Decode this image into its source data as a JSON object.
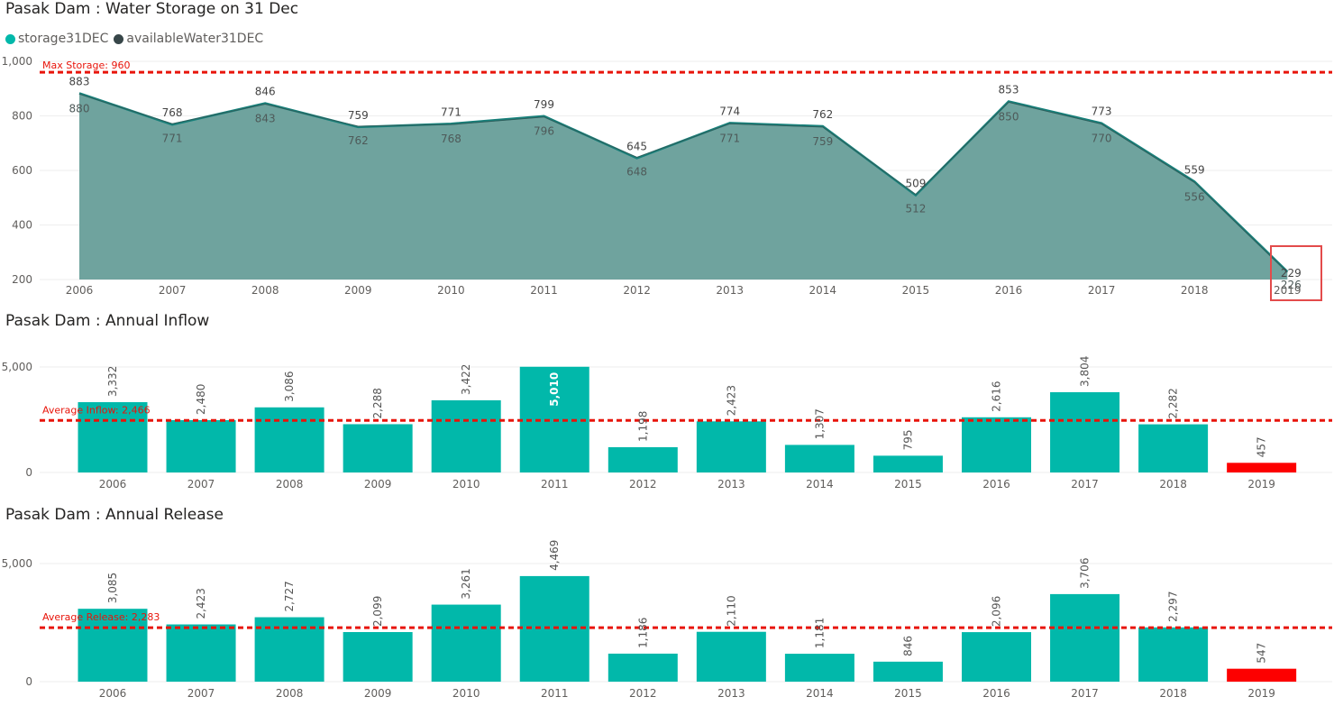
{
  "colors": {
    "storage": "#01B8AA",
    "available": "#374649",
    "area_fill": "#6FA39E",
    "line": "#17807A",
    "bar": "#01B8AA",
    "highlight_bar": "#FD0000",
    "reference_line": "#E8140A",
    "highlight_box": "#E34B4B",
    "grid": "#eeeeee",
    "axis_text": "#605e5c"
  },
  "charts": {
    "storage": {
      "title": "Pasak Dam : Water Storage on 31 Dec",
      "legend": [
        {
          "label": "storage31DEC",
          "color": "#01B8AA"
        },
        {
          "label": "availableWater31DEC",
          "color": "#374649"
        }
      ],
      "reference_label": "Max Storage: 960"
    },
    "inflow": {
      "title": "Pasak Dam : Annual Inflow",
      "reference_label": "Average Inflow: 2,466"
    },
    "release": {
      "title": "Pasak Dam : Annual Release",
      "reference_label": "Average Release: 2,283"
    }
  },
  "chart_data": [
    {
      "type": "area",
      "title": "Pasak Dam : Water Storage on 31 Dec",
      "x": [
        "2006",
        "2007",
        "2008",
        "2009",
        "2010",
        "2011",
        "2012",
        "2013",
        "2014",
        "2015",
        "2016",
        "2017",
        "2018",
        "2019"
      ],
      "series": [
        {
          "name": "storage31DEC",
          "values": [
            883,
            768,
            846,
            759,
            771,
            799,
            645,
            774,
            762,
            509,
            853,
            773,
            559,
            229
          ]
        },
        {
          "name": "availableWater31DEC",
          "values": [
            880,
            771,
            843,
            762,
            768,
            796,
            648,
            771,
            759,
            512,
            850,
            770,
            556,
            226
          ]
        }
      ],
      "reference_line": {
        "label": "Max Storage: 960",
        "value": 960
      },
      "y_ticks": [
        "200",
        "400",
        "600",
        "800",
        "1,000"
      ],
      "ylim": [
        200,
        1000
      ],
      "grid": true,
      "legend": "top-left",
      "highlight": "2019"
    },
    {
      "type": "bar",
      "title": "Pasak Dam : Annual Inflow",
      "categories": [
        "2006",
        "2007",
        "2008",
        "2009",
        "2010",
        "2011",
        "2012",
        "2013",
        "2014",
        "2015",
        "2016",
        "2017",
        "2018",
        "2019"
      ],
      "values": [
        3332,
        2480,
        3086,
        2288,
        3422,
        5010,
        1198,
        2423,
        1307,
        795,
        2616,
        3804,
        2282,
        457
      ],
      "labels": [
        "3,332",
        "2,480",
        "3,086",
        "2,288",
        "3,422",
        "5,010",
        "1,198",
        "2,423",
        "1,307",
        "795",
        "2,616",
        "3,804",
        "2,282",
        "457"
      ],
      "reference_line": {
        "label": "Average Inflow: 2,466",
        "value": 2466
      },
      "y_ticks": [
        "0",
        "5,000"
      ],
      "ylim": [
        0,
        5000
      ],
      "grid": true,
      "highlight": "2019"
    },
    {
      "type": "bar",
      "title": "Pasak Dam : Annual Release",
      "categories": [
        "2006",
        "2007",
        "2008",
        "2009",
        "2010",
        "2011",
        "2012",
        "2013",
        "2014",
        "2015",
        "2016",
        "2017",
        "2018",
        "2019"
      ],
      "values": [
        3085,
        2423,
        2727,
        2099,
        3261,
        4469,
        1186,
        2110,
        1181,
        846,
        2096,
        3706,
        2297,
        547
      ],
      "labels": [
        "3,085",
        "2,423",
        "2,727",
        "2,099",
        "3,261",
        "4,469",
        "1,186",
        "2,110",
        "1,181",
        "846",
        "2,096",
        "3,706",
        "2,297",
        "547"
      ],
      "reference_line": {
        "label": "Average Release: 2,283",
        "value": 2283
      },
      "y_ticks": [
        "0",
        "5,000"
      ],
      "ylim": [
        0,
        5000
      ],
      "grid": true,
      "highlight": "2019"
    }
  ]
}
